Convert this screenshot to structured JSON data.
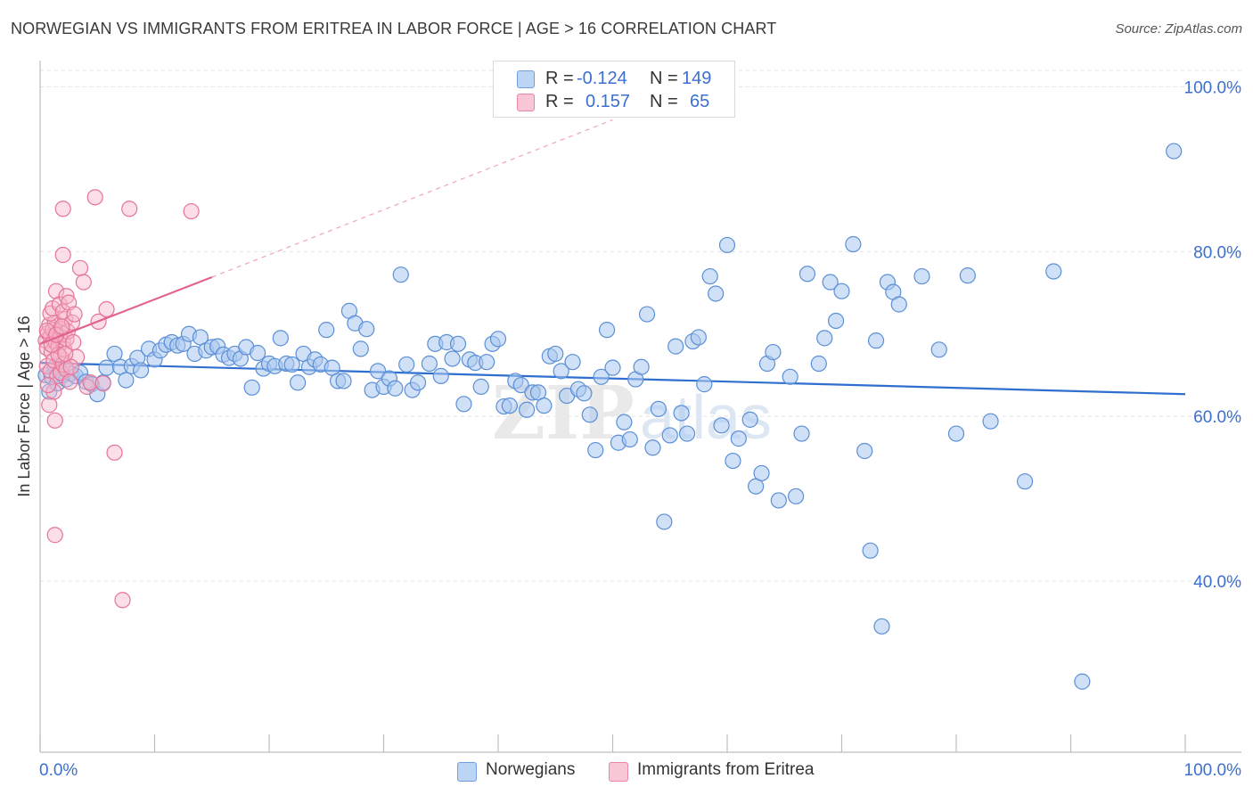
{
  "header": {
    "title": "NORWEGIAN VS IMMIGRANTS FROM ERITREA IN LABOR FORCE | AGE > 16 CORRELATION CHART",
    "source": "Source: ZipAtlas.com"
  },
  "legend": {
    "rows": [
      {
        "r_label": "R =",
        "r_value": "-0.124",
        "n_label": "N =",
        "n_value": "149"
      },
      {
        "r_label": "R =",
        "r_value": "0.157",
        "n_label": "N =",
        "n_value": "65"
      }
    ],
    "bottom": [
      "Norwegians",
      "Immigrants from Eritrea"
    ]
  },
  "colors": {
    "blue_fill": "#a9c8f0",
    "blue_stroke": "#5b8fd6",
    "blue_line": "#2f6fcf",
    "pink_fill": "#f6b6c9",
    "pink_stroke": "#e57598",
    "pink_line": "#e26390",
    "tick_label": "#3b6fd0",
    "grid": "#e3e3e3"
  },
  "chart_data": {
    "type": "scatter",
    "title": "NORWEGIAN VS IMMIGRANTS FROM ERITREA IN LABOR FORCE | AGE > 16 CORRELATION CHART",
    "xlabel": "",
    "ylabel": "In Labor Force | Age > 16",
    "xlim": [
      0,
      100
    ],
    "ylim": [
      20,
      105
    ],
    "x_tick_labels": [
      "0.0%",
      "100.0%"
    ],
    "y_ticks": [
      40,
      60,
      80,
      100
    ],
    "y_tick_labels": [
      "40.0%",
      "60.0%",
      "80.0%",
      "100.0%"
    ],
    "grid": true,
    "legend_position": "bottom",
    "watermark": "ZIPatlas",
    "series": [
      {
        "name": "Norwegians",
        "r": -0.124,
        "n": 149,
        "trend": {
          "x": [
            0,
            100
          ],
          "y": [
            66.5,
            62.7
          ]
        },
        "points": [
          [
            0.5,
            65
          ],
          [
            0.8,
            63
          ],
          [
            1,
            64.8
          ],
          [
            1.3,
            66
          ],
          [
            1.5,
            64
          ],
          [
            1.8,
            65.5
          ],
          [
            2,
            65
          ],
          [
            2.3,
            64.5
          ],
          [
            2.7,
            65.2
          ],
          [
            3.1,
            64.9
          ],
          [
            3.5,
            65.3
          ],
          [
            4,
            64.2
          ],
          [
            4.5,
            63.9
          ],
          [
            5,
            62.7
          ],
          [
            5.5,
            64.1
          ],
          [
            5.8,
            65.9
          ],
          [
            6.5,
            67.6
          ],
          [
            7,
            66
          ],
          [
            7.5,
            64.4
          ],
          [
            8,
            66.1
          ],
          [
            8.5,
            67.1
          ],
          [
            8.8,
            65.6
          ],
          [
            9.5,
            68.2
          ],
          [
            10,
            66.9
          ],
          [
            10.5,
            68
          ],
          [
            11,
            68.7
          ],
          [
            11.5,
            69
          ],
          [
            12,
            68.6
          ],
          [
            12.5,
            68.8
          ],
          [
            13,
            70
          ],
          [
            13.5,
            67.6
          ],
          [
            14,
            69.6
          ],
          [
            14.5,
            68
          ],
          [
            15,
            68.4
          ],
          [
            15.5,
            68.5
          ],
          [
            16,
            67.5
          ],
          [
            16.5,
            67.1
          ],
          [
            17,
            67.6
          ],
          [
            17.5,
            67
          ],
          [
            18,
            68.4
          ],
          [
            18.5,
            63.5
          ],
          [
            19,
            67.7
          ],
          [
            19.5,
            65.8
          ],
          [
            20,
            66.4
          ],
          [
            20.5,
            66.1
          ],
          [
            21,
            69.5
          ],
          [
            21.5,
            66.4
          ],
          [
            22,
            66.3
          ],
          [
            22.5,
            64.1
          ],
          [
            23,
            67.6
          ],
          [
            23.5,
            66
          ],
          [
            24,
            66.9
          ],
          [
            24.5,
            66.3
          ],
          [
            25,
            70.5
          ],
          [
            25.5,
            65.9
          ],
          [
            26,
            64.3
          ],
          [
            26.5,
            64.3
          ],
          [
            27,
            72.8
          ],
          [
            27.5,
            71.3
          ],
          [
            28,
            68.2
          ],
          [
            28.5,
            70.6
          ],
          [
            29,
            63.2
          ],
          [
            29.5,
            65.5
          ],
          [
            30,
            63.6
          ],
          [
            30.5,
            64.6
          ],
          [
            31,
            63.4
          ],
          [
            31.5,
            77.2
          ],
          [
            32,
            66.3
          ],
          [
            32.5,
            63.2
          ],
          [
            33,
            64.1
          ],
          [
            34,
            66.4
          ],
          [
            34.5,
            68.8
          ],
          [
            35,
            64.9
          ],
          [
            35.5,
            69.0
          ],
          [
            36,
            67.0
          ],
          [
            36.5,
            68.8
          ],
          [
            37,
            61.5
          ],
          [
            37.5,
            66.9
          ],
          [
            38,
            66.5
          ],
          [
            38.5,
            63.6
          ],
          [
            39,
            66.6
          ],
          [
            39.5,
            68.8
          ],
          [
            40,
            69.4
          ],
          [
            40.5,
            61.2
          ],
          [
            41,
            61.3
          ],
          [
            41.5,
            64.3
          ],
          [
            42,
            63.8
          ],
          [
            42.5,
            60.8
          ],
          [
            43,
            62.9
          ],
          [
            43.5,
            62.9
          ],
          [
            44,
            61.3
          ],
          [
            44.5,
            67.3
          ],
          [
            45,
            67.6
          ],
          [
            45.5,
            65.5
          ],
          [
            46,
            62.5
          ],
          [
            46.5,
            66.6
          ],
          [
            47,
            63.3
          ],
          [
            47.5,
            62.8
          ],
          [
            48,
            60.2
          ],
          [
            48.5,
            55.9
          ],
          [
            49,
            64.8
          ],
          [
            49.5,
            70.5
          ],
          [
            50,
            65.9
          ],
          [
            50.5,
            56.8
          ],
          [
            51,
            59.3
          ],
          [
            51.5,
            57.2
          ],
          [
            52,
            64.5
          ],
          [
            52.5,
            66.0
          ],
          [
            53,
            72.4
          ],
          [
            53.5,
            56.2
          ],
          [
            54,
            60.9
          ],
          [
            54.5,
            47.2
          ],
          [
            55,
            57.7
          ],
          [
            55.5,
            68.5
          ],
          [
            56,
            60.4
          ],
          [
            56.5,
            57.9
          ],
          [
            57,
            69.1
          ],
          [
            57.5,
            69.6
          ],
          [
            58,
            63.9
          ],
          [
            58.5,
            77.0
          ],
          [
            59,
            74.9
          ],
          [
            59.5,
            58.9
          ],
          [
            60,
            80.8
          ],
          [
            60.5,
            54.6
          ],
          [
            61,
            57.3
          ],
          [
            62,
            59.6
          ],
          [
            62.5,
            51.5
          ],
          [
            63,
            53.1
          ],
          [
            63.5,
            66.4
          ],
          [
            64,
            67.8
          ],
          [
            64.5,
            49.8
          ],
          [
            65.5,
            64.8
          ],
          [
            66,
            50.3
          ],
          [
            66.5,
            57.9
          ],
          [
            67,
            77.3
          ],
          [
            68,
            66.4
          ],
          [
            68.5,
            69.5
          ],
          [
            69,
            76.3
          ],
          [
            69.5,
            71.6
          ],
          [
            70,
            75.2
          ],
          [
            71,
            80.9
          ],
          [
            72,
            55.8
          ],
          [
            72.5,
            43.7
          ],
          [
            73,
            69.2
          ],
          [
            73.5,
            34.5
          ],
          [
            74,
            76.3
          ],
          [
            74.5,
            75.1
          ],
          [
            75,
            73.6
          ],
          [
            77,
            77.0
          ],
          [
            78.5,
            68.1
          ],
          [
            80,
            57.9
          ],
          [
            81,
            77.1
          ],
          [
            83,
            59.4
          ],
          [
            86,
            52.1
          ],
          [
            88.5,
            77.6
          ],
          [
            91,
            27.8
          ],
          [
            99,
            92.2
          ]
        ]
      },
      {
        "name": "Immigrants from Eritrea",
        "r": 0.157,
        "n": 65,
        "trend": {
          "x": [
            0,
            15
          ],
          "y": [
            68.8,
            76.9
          ]
        },
        "trend_extension": {
          "x": [
            15,
            50
          ],
          "y": [
            76.9,
            96
          ]
        },
        "points": [
          [
            0.5,
            69.2
          ],
          [
            0.6,
            68.3
          ],
          [
            0.7,
            70.1
          ],
          [
            0.8,
            71.1
          ],
          [
            0.9,
            69.7
          ],
          [
            1.0,
            67.8
          ],
          [
            1.1,
            70.5
          ],
          [
            1.2,
            69.3
          ],
          [
            1.3,
            71.4
          ],
          [
            1.4,
            68.9
          ],
          [
            1.5,
            70.0
          ],
          [
            1.6,
            68.5
          ],
          [
            1.7,
            69.8
          ],
          [
            1.8,
            67.2
          ],
          [
            1.9,
            70.6
          ],
          [
            2.0,
            69.1
          ],
          [
            2.1,
            68.2
          ],
          [
            2.2,
            71.8
          ],
          [
            2.3,
            69.4
          ],
          [
            2.4,
            70.3
          ],
          [
            0.6,
            66.1
          ],
          [
            0.9,
            65.5
          ],
          [
            1.2,
            66.8
          ],
          [
            1.5,
            64.9
          ],
          [
            1.8,
            65.3
          ],
          [
            2.0,
            66.3
          ],
          [
            2.3,
            65.7
          ],
          [
            2.6,
            64.2
          ],
          [
            0.8,
            61.4
          ],
          [
            1.2,
            63.0
          ],
          [
            0.9,
            72.5
          ],
          [
            1.1,
            73.1
          ],
          [
            1.4,
            75.2
          ],
          [
            1.7,
            73.6
          ],
          [
            2.0,
            72.7
          ],
          [
            2.3,
            74.6
          ],
          [
            2.5,
            73.8
          ],
          [
            2.8,
            71.4
          ],
          [
            3.0,
            72.4
          ],
          [
            3.2,
            67.2
          ],
          [
            3.5,
            78.0
          ],
          [
            3.8,
            76.3
          ],
          [
            4.1,
            63.6
          ],
          [
            4.4,
            64.1
          ],
          [
            4.8,
            86.6
          ],
          [
            5.1,
            71.5
          ],
          [
            5.5,
            64.0
          ],
          [
            5.8,
            73.0
          ],
          [
            1.3,
            59.5
          ],
          [
            1.3,
            45.6
          ],
          [
            2.0,
            85.2
          ],
          [
            2.0,
            79.6
          ],
          [
            6.5,
            55.6
          ],
          [
            7.2,
            37.7
          ],
          [
            7.8,
            85.2
          ],
          [
            13.2,
            84.9
          ],
          [
            1.6,
            67.5
          ],
          [
            2.7,
            66.0
          ],
          [
            0.6,
            70.4
          ],
          [
            1.0,
            68.7
          ],
          [
            1.4,
            69.9
          ],
          [
            1.9,
            70.9
          ],
          [
            2.2,
            67.6
          ],
          [
            0.7,
            63.8
          ],
          [
            2.9,
            69.0
          ]
        ]
      }
    ]
  }
}
